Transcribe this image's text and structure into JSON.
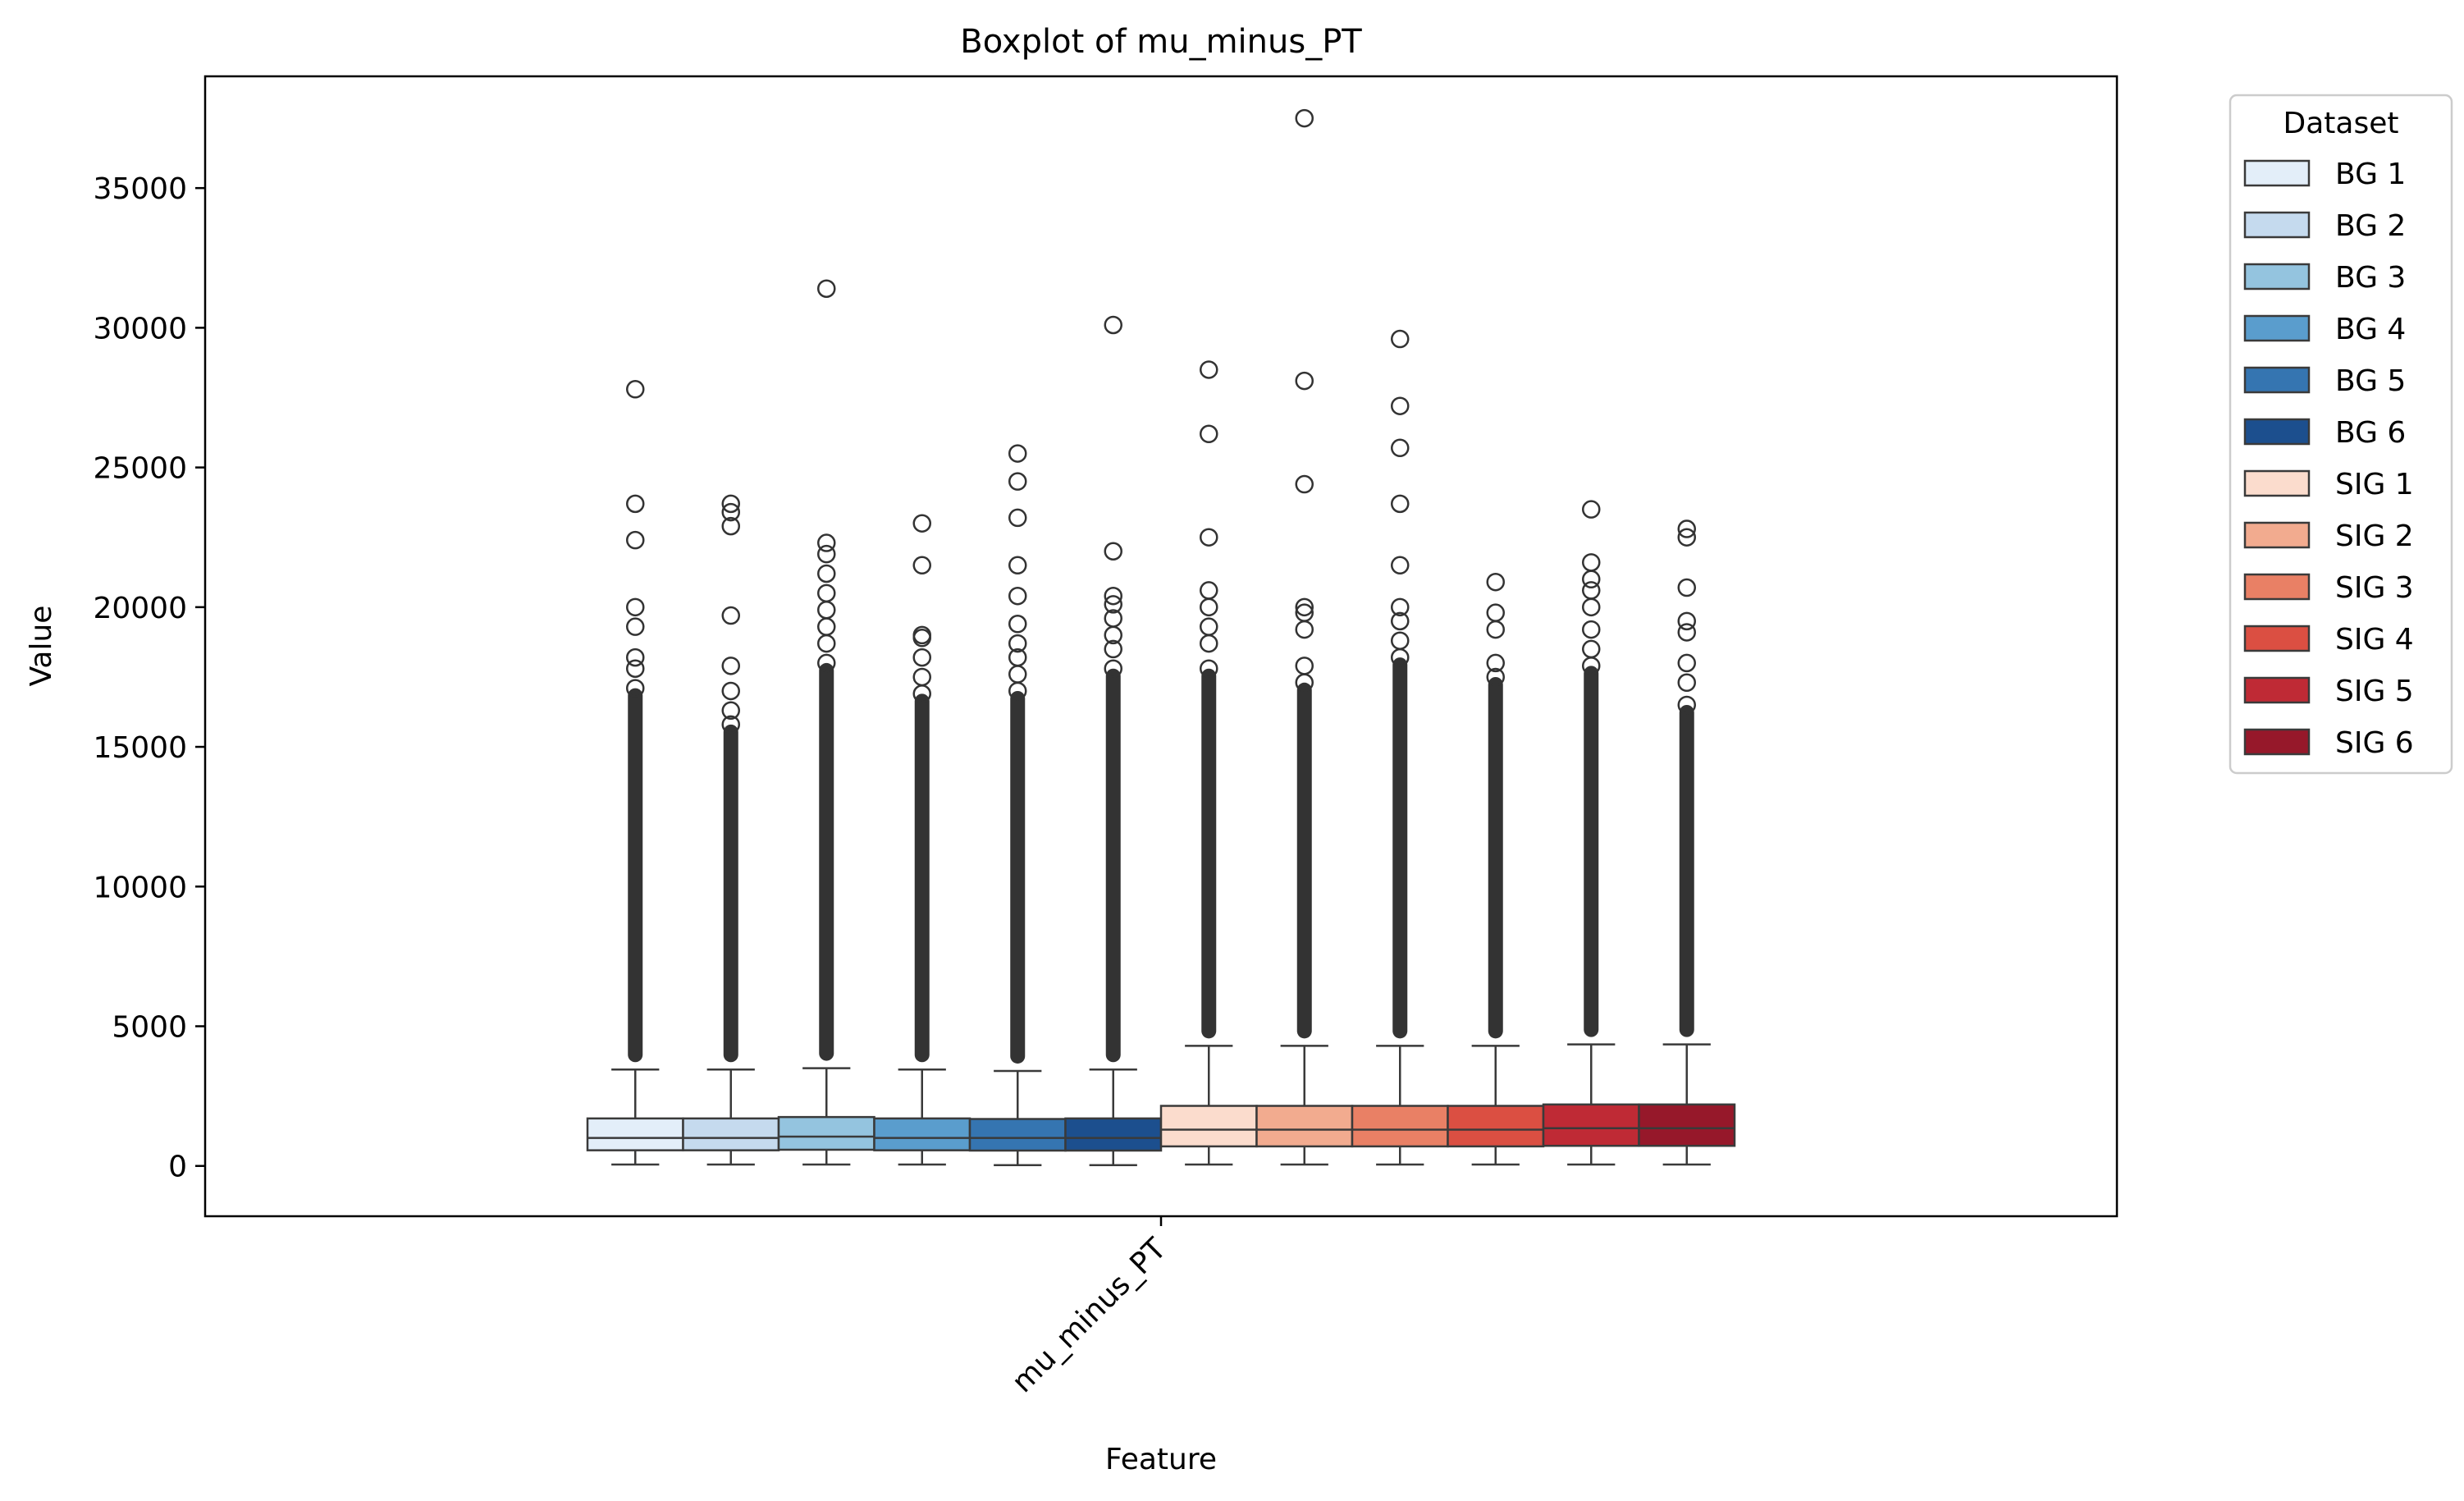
{
  "chart_data": {
    "type": "boxplot",
    "title": "Boxplot of mu_minus_PT",
    "xlabel": "Feature",
    "ylabel": "Value",
    "categories": [
      "mu_minus_PT"
    ],
    "ylim": [
      -1800,
      39000
    ],
    "yticks": [
      0,
      5000,
      10000,
      15000,
      20000,
      25000,
      30000,
      35000
    ],
    "grid": false,
    "legend": {
      "title": "Dataset",
      "placement": "outside-top-right"
    },
    "series": [
      {
        "name": "BG 1",
        "color": "#e3eef9",
        "min": 50,
        "q1": 560,
        "median": 1000,
        "q3": 1700,
        "whisker_high": 3450,
        "max": 27800,
        "outliers": [
          27800,
          23700,
          22400,
          20000,
          19300,
          18200,
          17800,
          17100
        ]
      },
      {
        "name": "BG 2",
        "color": "#c5daee",
        "min": 50,
        "q1": 560,
        "median": 1000,
        "q3": 1700,
        "whisker_high": 3450,
        "max": 23700,
        "outliers": [
          23700,
          23400,
          22900,
          19700,
          17900,
          17000,
          16300,
          15800
        ]
      },
      {
        "name": "BG 3",
        "color": "#94c4df",
        "min": 50,
        "q1": 580,
        "median": 1050,
        "q3": 1750,
        "whisker_high": 3500,
        "max": 31400,
        "outliers": [
          31400,
          22300,
          21900,
          21200,
          20500,
          19900,
          19300,
          18700,
          18000
        ]
      },
      {
        "name": "BG 4",
        "color": "#5a9dcd",
        "min": 50,
        "q1": 560,
        "median": 1000,
        "q3": 1700,
        "whisker_high": 3450,
        "max": 23000,
        "outliers": [
          23000,
          21500,
          19000,
          18900,
          18200,
          17500,
          16900
        ]
      },
      {
        "name": "BG 5",
        "color": "#3575b1",
        "min": 30,
        "q1": 550,
        "median": 1000,
        "q3": 1680,
        "whisker_high": 3400,
        "max": 25500,
        "outliers": [
          25500,
          24500,
          23200,
          21500,
          20400,
          19400,
          18700,
          18200,
          17600,
          17000
        ]
      },
      {
        "name": "BG 6",
        "color": "#1c4f8e",
        "min": 30,
        "q1": 550,
        "median": 1000,
        "q3": 1700,
        "whisker_high": 3450,
        "max": 30100,
        "outliers": [
          30100,
          22000,
          20400,
          20100,
          19600,
          19000,
          18500,
          17800
        ]
      },
      {
        "name": "SIG 1",
        "color": "#fbdccd",
        "min": 50,
        "q1": 700,
        "median": 1300,
        "q3": 2150,
        "whisker_high": 4300,
        "max": 28500,
        "outliers": [
          28500,
          26200,
          22500,
          20600,
          20000,
          19300,
          18700,
          17800
        ]
      },
      {
        "name": "SIG 2",
        "color": "#f2ab8f",
        "min": 50,
        "q1": 700,
        "median": 1300,
        "q3": 2150,
        "whisker_high": 4300,
        "max": 37500,
        "outliers": [
          37500,
          28100,
          24400,
          20000,
          19800,
          19200,
          17900,
          17300
        ]
      },
      {
        "name": "SIG 3",
        "color": "#e98065",
        "min": 50,
        "q1": 700,
        "median": 1300,
        "q3": 2150,
        "whisker_high": 4300,
        "max": 29600,
        "outliers": [
          29600,
          27200,
          25700,
          23700,
          21500,
          20000,
          19500,
          18800,
          18200
        ]
      },
      {
        "name": "SIG 4",
        "color": "#db4f42",
        "min": 50,
        "q1": 700,
        "median": 1300,
        "q3": 2150,
        "whisker_high": 4300,
        "max": 20900,
        "outliers": [
          20900,
          19800,
          19200,
          18000,
          17500
        ]
      },
      {
        "name": "SIG 5",
        "color": "#bf2a35",
        "min": 50,
        "q1": 720,
        "median": 1350,
        "q3": 2200,
        "whisker_high": 4350,
        "max": 23500,
        "outliers": [
          23500,
          21600,
          21000,
          20600,
          20000,
          19200,
          18500,
          17900
        ]
      },
      {
        "name": "SIG 6",
        "color": "#96182a",
        "min": 50,
        "q1": 720,
        "median": 1350,
        "q3": 2200,
        "whisker_high": 4350,
        "max": 22800,
        "outliers": [
          22800,
          22500,
          20700,
          19500,
          19100,
          18000,
          17300,
          16500
        ]
      }
    ]
  }
}
